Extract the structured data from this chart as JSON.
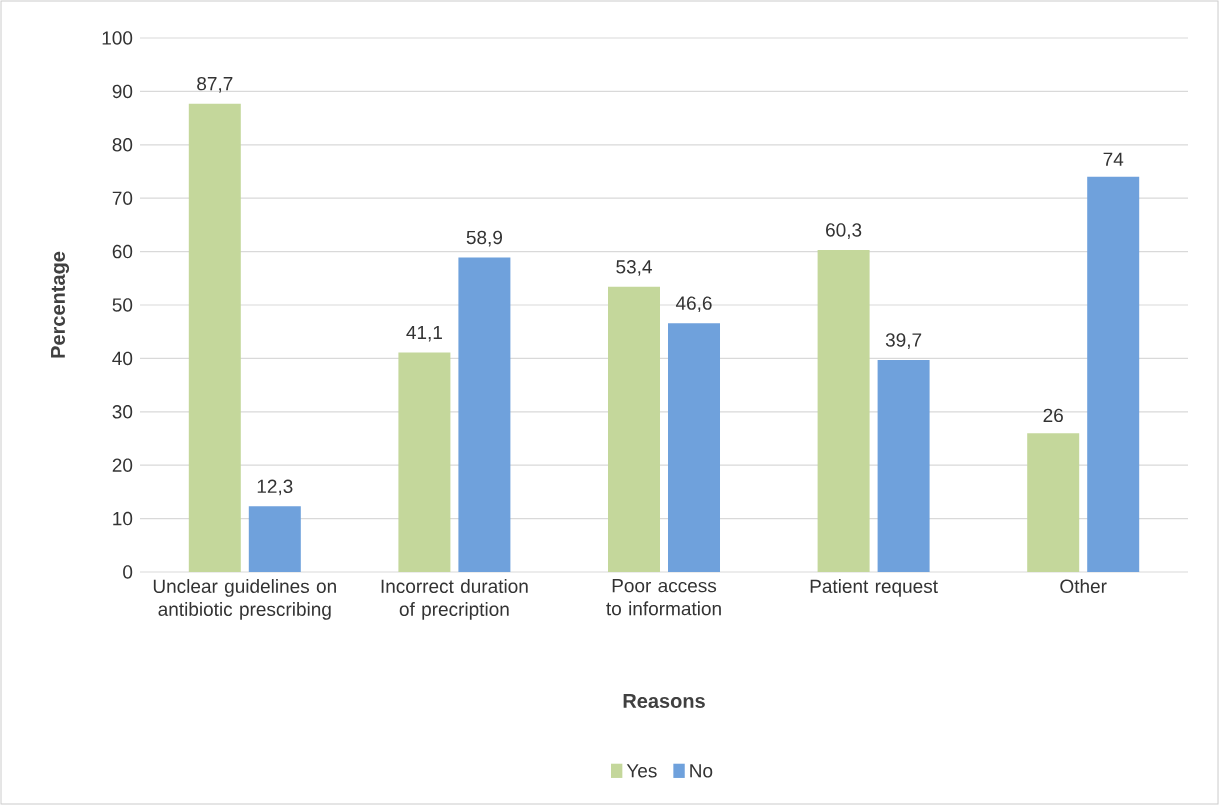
{
  "chart_data": {
    "type": "bar",
    "categories": [
      "Unclear guidelines on antibiotic prescribing",
      "Incorrect duration of precription",
      "Poor access to information",
      "Patient request",
      "Other"
    ],
    "series": [
      {
        "name": "Yes",
        "color": "#c4d79b",
        "values": [
          87.7,
          41.1,
          53.4,
          60.3,
          26
        ],
        "value_labels": [
          "87,7",
          "41,1",
          "53,4",
          "60,3",
          "26"
        ]
      },
      {
        "name": "No",
        "color": "#6fa1dc",
        "values": [
          12.3,
          58.9,
          46.6,
          39.7,
          74
        ],
        "value_labels": [
          "12,3",
          "58,9",
          "46,6",
          "39,7",
          "74"
        ]
      }
    ],
    "xlabel": "Reasons",
    "ylabel": "Percentage",
    "ylim": [
      0,
      100
    ],
    "yticks": [
      0,
      10,
      20,
      30,
      40,
      50,
      60,
      70,
      80,
      90,
      100
    ],
    "grid": "y",
    "legend": "bottom"
  }
}
